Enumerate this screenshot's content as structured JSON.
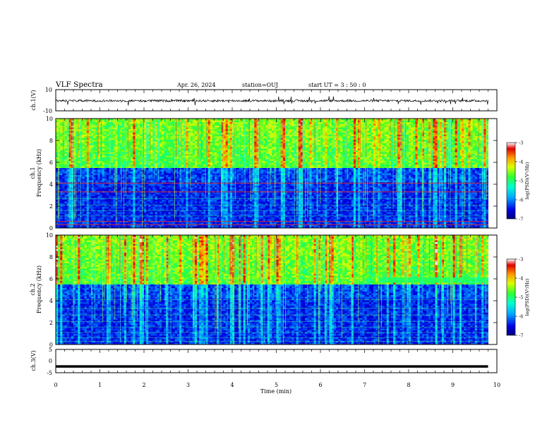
{
  "header": {
    "title": "VLF Spectra",
    "date": "Apr. 26, 2024",
    "station": "station=OUJ",
    "start": "start  UT =  3 : 50 : 0"
  },
  "colorbar": {
    "label": "log(PSD)(V²/Hz)",
    "ticks": [
      "-3",
      "-4",
      "-5",
      "-6",
      "-7"
    ]
  },
  "chart_data": [
    {
      "type": "line",
      "name": "ch1-waveform",
      "ylabel": "ch.1(V)",
      "ylim": [
        -10,
        10
      ],
      "ytick_labels": [
        "10",
        "-10"
      ],
      "x_range_min": [
        0,
        9.8
      ],
      "approx_level": -0.5,
      "approx_spread": 1.0
    },
    {
      "type": "heatmap",
      "name": "ch1-spectrogram",
      "ylabel_lines": [
        "ch.1",
        "Frequency (kHz)"
      ],
      "xlim": [
        0,
        10
      ],
      "ylim": [
        0,
        10
      ],
      "ytick_labels": [
        "0",
        "2",
        "4",
        "6",
        "8",
        "10"
      ],
      "clim": [
        -7,
        -3
      ],
      "data_x_max": 9.8,
      "features": {
        "lower_band_kHz": [
          0,
          5.5
        ],
        "upper_band_kHz": [
          5.5,
          10
        ],
        "strong_lines_kHz": [
          0.3,
          0.6,
          3.3,
          4.1
        ]
      }
    },
    {
      "type": "heatmap",
      "name": "ch2-spectrogram",
      "ylabel_lines": [
        "ch.2",
        "Frequency (kHz)"
      ],
      "xlim": [
        0,
        10
      ],
      "ylim": [
        0,
        10
      ],
      "ytick_labels": [
        "0",
        "2",
        "4",
        "6",
        "8",
        "10"
      ],
      "clim": [
        -7,
        -3
      ],
      "data_x_max": 9.8,
      "features": {
        "lower_band_kHz": [
          0,
          5.5
        ],
        "upper_band_kHz": [
          5.5,
          10
        ],
        "emission_band_kHz": [
          5.7,
          6.2
        ],
        "emission_time_min": [
          7.35,
          9.8
        ]
      }
    },
    {
      "type": "line",
      "name": "ch3-waveform",
      "ylabel": "ch.3(V)",
      "ylim": [
        -5,
        5
      ],
      "ytick_labels": [
        "5",
        "0",
        "-5"
      ],
      "x_range_min": [
        0,
        9.8
      ],
      "approx_level": -2.3
    }
  ],
  "xaxis": {
    "label": "Time (min)",
    "ticks": [
      "0",
      "1",
      "2",
      "3",
      "4",
      "5",
      "6",
      "7",
      "8",
      "9",
      "10"
    ],
    "range": [
      0,
      10
    ]
  }
}
